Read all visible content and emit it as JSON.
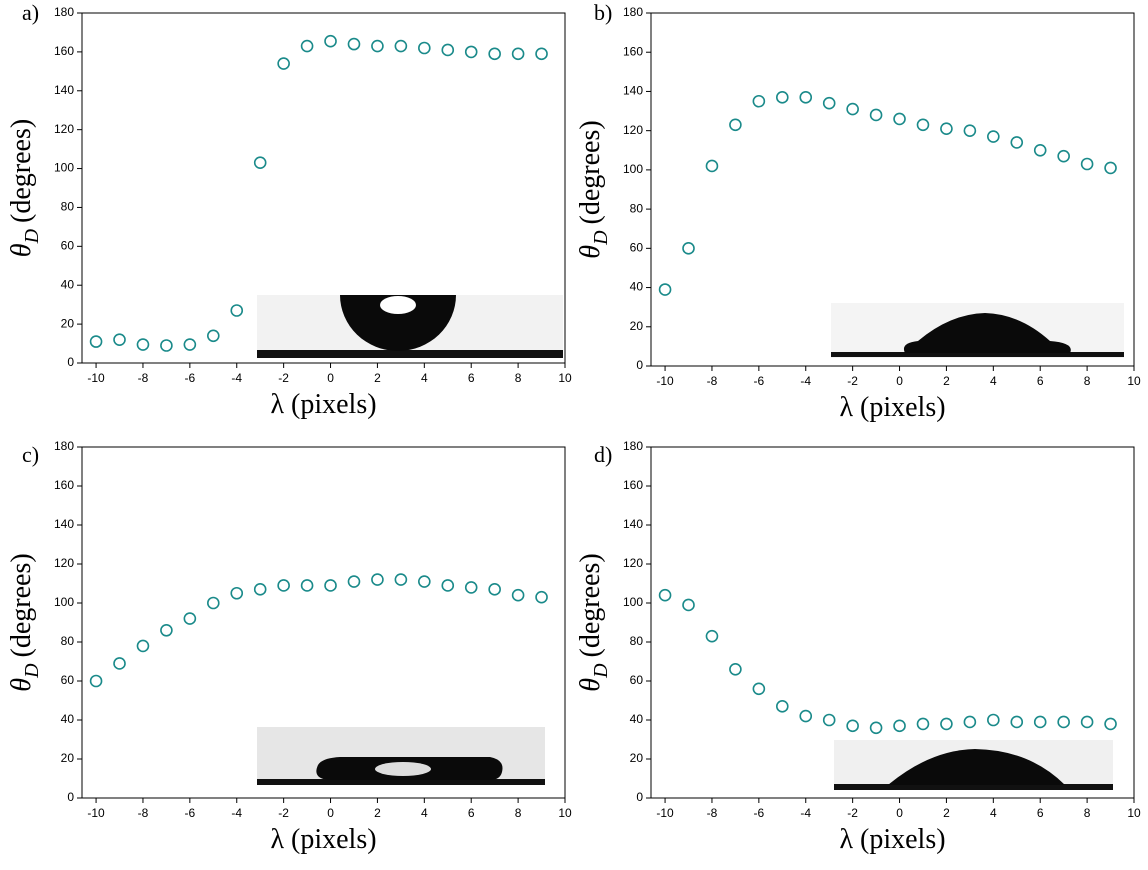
{
  "chart_data": [
    {
      "type": "scatter",
      "panel_label": "a)",
      "ylabel": "θ",
      "ylabel_sub": "D",
      "ylabel_unit": "(degrees)",
      "xlabel": "λ (pixels)",
      "x": [
        -10,
        -9,
        -8,
        -7,
        -6,
        -5,
        -4,
        -3,
        -2,
        -1,
        0,
        1,
        2,
        3,
        4,
        5,
        6,
        7,
        8,
        9
      ],
      "series": [
        {
          "color": "#1a8a8a",
          "values": [
            11,
            12,
            9.5,
            9,
            9.5,
            14,
            27,
            103,
            154,
            163,
            165.5,
            164,
            163,
            163,
            162,
            161,
            160,
            159,
            159,
            159
          ]
        }
      ],
      "xlim": [
        -10.6,
        10
      ],
      "xticks": [
        -10,
        -8,
        -6,
        -4,
        -2,
        0,
        2,
        4,
        6,
        8,
        10
      ],
      "ylim": [
        0,
        180
      ],
      "yticks": [
        0,
        20,
        40,
        60,
        80,
        100,
        120,
        140,
        160,
        180
      ]
    },
    {
      "type": "scatter",
      "panel_label": "b)",
      "ylabel": "θ",
      "ylabel_sub": "D",
      "ylabel_unit": "(degrees)",
      "xlabel": "λ (pixels)",
      "x": [
        -10,
        -9,
        -8,
        -7,
        -6,
        -5,
        -4,
        -3,
        -2,
        -1,
        0,
        1,
        2,
        3,
        4,
        5,
        6,
        7,
        8,
        9
      ],
      "series": [
        {
          "color": "#1a8a8a",
          "values": [
            39,
            60,
            102,
            123,
            135,
            137,
            137,
            134,
            131,
            128,
            126,
            123,
            121,
            120,
            117,
            114,
            110,
            107,
            103,
            101
          ]
        }
      ],
      "xlim": [
        -10.6,
        10
      ],
      "xticks": [
        -10,
        -8,
        -6,
        -4,
        -2,
        0,
        2,
        4,
        6,
        8,
        10
      ],
      "ylim": [
        0,
        180
      ],
      "yticks": [
        0,
        20,
        40,
        60,
        80,
        100,
        120,
        140,
        160,
        180
      ]
    },
    {
      "type": "scatter",
      "panel_label": "c)",
      "ylabel": "θ",
      "ylabel_sub": "D",
      "ylabel_unit": "(degrees)",
      "xlabel": "λ (pixels)",
      "x": [
        -10,
        -9,
        -8,
        -7,
        -6,
        -5,
        -4,
        -3,
        -2,
        -1,
        0,
        1,
        2,
        3,
        4,
        5,
        6,
        7,
        8,
        9
      ],
      "series": [
        {
          "color": "#1a8a8a",
          "values": [
            60,
            69,
            78,
            86,
            92,
            100,
            105,
            107,
            109,
            109,
            109,
            111,
            112,
            112,
            111,
            109,
            108,
            107,
            104,
            103
          ]
        }
      ],
      "xlim": [
        -10.6,
        10
      ],
      "xticks": [
        -10,
        -8,
        -6,
        -4,
        -2,
        0,
        2,
        4,
        6,
        8,
        10
      ],
      "ylim": [
        0,
        180
      ],
      "yticks": [
        0,
        20,
        40,
        60,
        80,
        100,
        120,
        140,
        160,
        180
      ]
    },
    {
      "type": "scatter",
      "panel_label": "d)",
      "ylabel": "θ",
      "ylabel_sub": "D",
      "ylabel_unit": "(degrees)",
      "xlabel": "λ (pixels)",
      "x": [
        -10,
        -9,
        -8,
        -7,
        -6,
        -5,
        -4,
        -3,
        -2,
        -1,
        0,
        1,
        2,
        3,
        4,
        5,
        6,
        7,
        8,
        9
      ],
      "series": [
        {
          "color": "#1a8a8a",
          "values": [
            104,
            99,
            83,
            66,
            56,
            47,
            42,
            40,
            37,
            36,
            37,
            38,
            38,
            39,
            40,
            39,
            39,
            39,
            39,
            38
          ]
        }
      ],
      "xlim": [
        -10.6,
        10
      ],
      "xticks": [
        -10,
        -8,
        -6,
        -4,
        -2,
        0,
        2,
        4,
        6,
        8,
        10
      ],
      "ylim": [
        0,
        180
      ],
      "yticks": [
        0,
        20,
        40,
        60,
        80,
        100,
        120,
        140,
        160,
        180
      ]
    }
  ]
}
